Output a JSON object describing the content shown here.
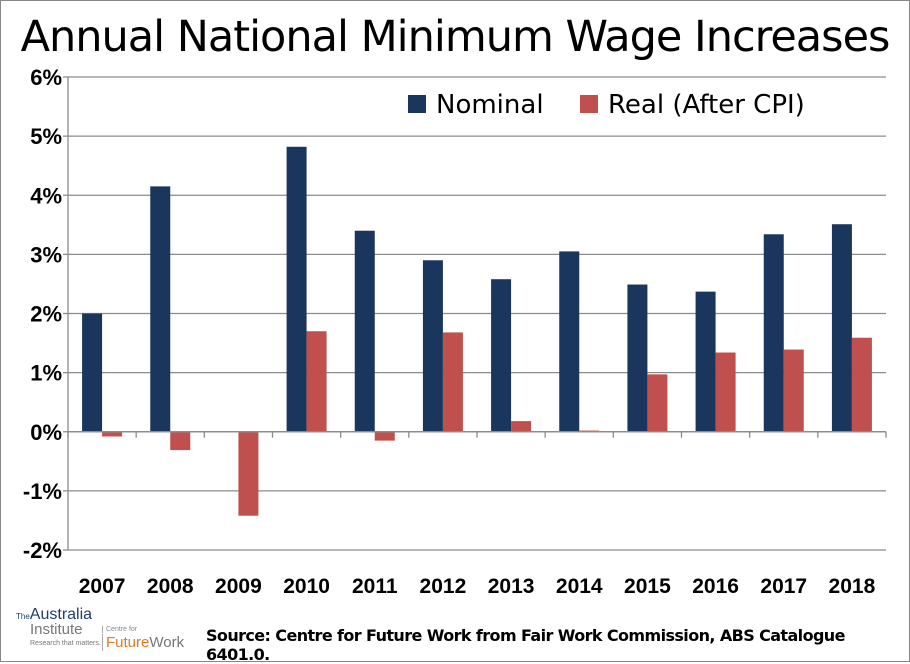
{
  "chart_data": {
    "type": "bar",
    "title": "Annual National Minimum Wage Increases",
    "categories": [
      "2007",
      "2008",
      "2009",
      "2010",
      "2011",
      "2012",
      "2013",
      "2014",
      "2015",
      "2016",
      "2017",
      "2018"
    ],
    "series": [
      {
        "name": "Nominal",
        "color": "#1b365d",
        "values": [
          2.0,
          4.15,
          0,
          4.82,
          3.4,
          2.9,
          2.58,
          3.05,
          2.49,
          2.37,
          3.34,
          3.51
        ]
      },
      {
        "name": "Real (After CPI)",
        "color": "#c0504d",
        "values": [
          -0.08,
          -0.31,
          -1.42,
          1.7,
          -0.15,
          1.68,
          0.18,
          0.02,
          0.97,
          1.34,
          1.39,
          1.59
        ]
      }
    ],
    "ylim": [
      -2,
      6
    ],
    "yticks": [
      -2,
      -1,
      0,
      1,
      2,
      3,
      4,
      5,
      6
    ],
    "ytick_labels": [
      "-2%",
      "-1%",
      "0%",
      "1%",
      "2%",
      "3%",
      "4%",
      "5%",
      "6%"
    ],
    "xlabel": "",
    "ylabel": "",
    "grid": true,
    "legend_position": "top-right"
  },
  "source": "Source: Centre for Future Work from Fair Work Commission, ABS Catalogue 6401.0.",
  "logo": {
    "the": "The",
    "australia": "Australia",
    "institute": "Institute",
    "tagline": "Research that matters.",
    "centre_for": "Centre for",
    "future": "Future",
    "work": "Work"
  }
}
